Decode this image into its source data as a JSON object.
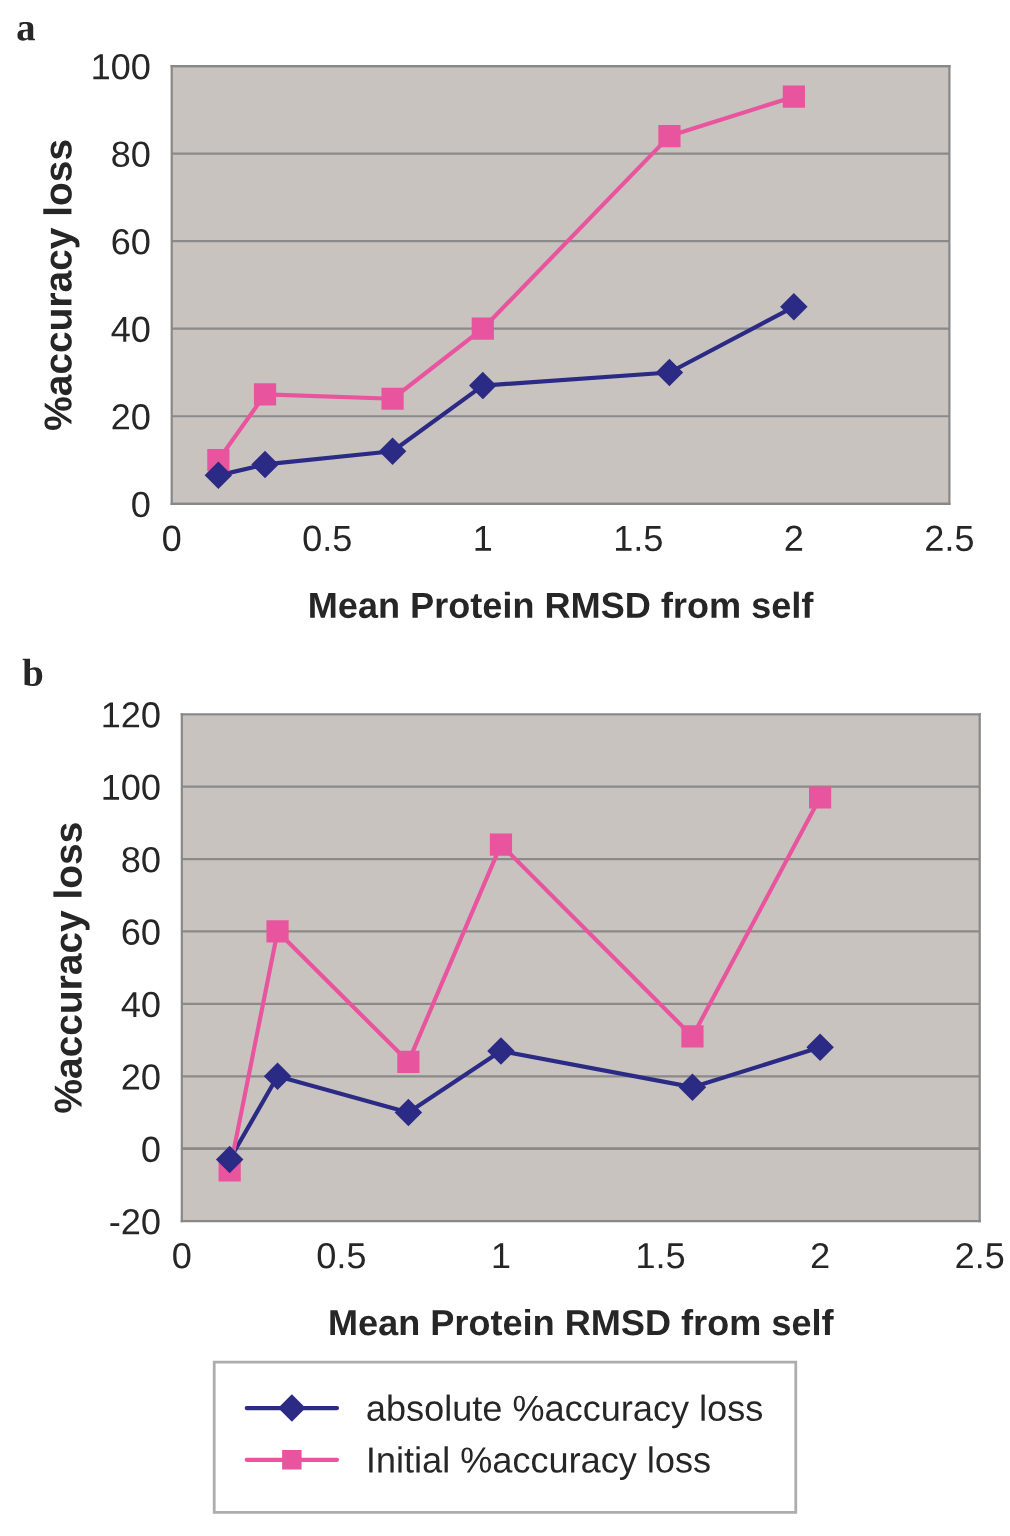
{
  "chart_data": [
    {
      "type": "line",
      "title": "a",
      "xlabel": "Mean Protein RMSD from self",
      "ylabel": "%accuracy loss",
      "x": [
        0.15,
        0.3,
        0.71,
        1.0,
        1.6,
        2.0
      ],
      "series": [
        {
          "color": "#2b2b85",
          "marker": "diamond",
          "values": [
            6.5,
            9,
            12,
            27,
            30,
            45
          ]
        },
        {
          "color": "#e8559e",
          "marker": "square",
          "values": [
            10,
            25,
            24,
            40,
            84,
            93
          ]
        }
      ],
      "xlim": [
        0,
        2.5
      ],
      "xticks": [
        0,
        0.5,
        1,
        1.5,
        2,
        2.5
      ],
      "ylim": [
        0,
        100
      ],
      "yticks": [
        0,
        20,
        40,
        60,
        80,
        100
      ],
      "grid": "y",
      "legend": false,
      "line_style": "solid"
    },
    {
      "type": "line",
      "title": "b",
      "xlabel": "Mean Protein RMSD from self",
      "ylabel": "%accuracy loss",
      "x": [
        0.15,
        0.3,
        0.71,
        1.0,
        1.6,
        2.0
      ],
      "series": [
        {
          "name": "absolute %accuracy loss",
          "color": "#2b2b85",
          "marker": "diamond",
          "values": [
            -3,
            20,
            10,
            27,
            17,
            28
          ]
        },
        {
          "name": "Initial %accuracy loss",
          "color": "#e8559e",
          "marker": "square",
          "values": [
            -6,
            60,
            24,
            84,
            31,
            97
          ]
        }
      ],
      "xlim": [
        0,
        2.5
      ],
      "xticks": [
        0,
        0.5,
        1,
        1.5,
        2,
        2.5
      ],
      "ylim": [
        -20,
        120
      ],
      "yticks": [
        -20,
        0,
        20,
        40,
        60,
        80,
        100,
        120
      ],
      "grid": "y",
      "legend": "bottom",
      "line_style": "solid"
    }
  ]
}
